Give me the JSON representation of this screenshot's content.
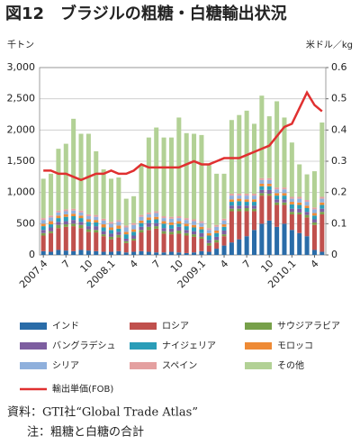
{
  "chart_data": {
    "type": "bar",
    "stacked": true,
    "title": "図12　ブラジルの粗糖・白糖輸出状況",
    "y_label": "千トン",
    "y2_label": "米ドル／kg",
    "categories": [
      "2007.4",
      null,
      null,
      "7",
      null,
      null,
      "10",
      null,
      null,
      "2008.1",
      null,
      null,
      "4",
      null,
      null,
      "7",
      null,
      null,
      "10",
      null,
      null,
      "2009.1",
      null,
      null,
      "4",
      null,
      null,
      "7",
      null,
      null,
      "10",
      null,
      null,
      "2010.1",
      null,
      null,
      "4",
      null
    ],
    "ylim": [
      0,
      3000
    ],
    "yticks": [
      0,
      500,
      {
        "value": 1000,
        "label": "1,000"
      },
      {
        "value": 1500,
        "label": "1,500"
      },
      {
        "value": 2000,
        "label": "2,000"
      },
      {
        "value": 2500,
        "label": "2,500"
      },
      {
        "value": 3000,
        "label": "3,000"
      }
    ],
    "y2lim": [
      0,
      0.6
    ],
    "y2ticks": [
      0,
      0.1,
      0.2,
      0.3,
      0.4,
      0.5,
      0.6
    ],
    "grid": true,
    "series": [
      {
        "name": "インド",
        "color": "#2a6ca8",
        "values": [
          60,
          50,
          80,
          70,
          60,
          80,
          70,
          60,
          50,
          50,
          60,
          40,
          50,
          60,
          50,
          40,
          40,
          50,
          40,
          30,
          40,
          60,
          50,
          100,
          150,
          200,
          250,
          300,
          400,
          500,
          550,
          450,
          500,
          400,
          350,
          300,
          80,
          50
        ]
      },
      {
        "name": "ロシア",
        "color": "#c0504d",
        "values": [
          250,
          300,
          350,
          380,
          400,
          350,
          300,
          300,
          250,
          200,
          220,
          150,
          180,
          300,
          350,
          380,
          300,
          280,
          300,
          280,
          250,
          200,
          100,
          100,
          150,
          500,
          450,
          400,
          300,
          450,
          400,
          350,
          300,
          250,
          300,
          300,
          400,
          600
        ]
      },
      {
        "name": "サウジアラビア",
        "color": "#77a04a",
        "values": [
          40,
          30,
          50,
          40,
          40,
          50,
          40,
          40,
          30,
          40,
          40,
          30,
          30,
          40,
          50,
          40,
          40,
          40,
          50,
          40,
          40,
          30,
          40,
          40,
          30,
          40,
          40,
          50,
          40,
          40,
          30,
          40,
          40,
          40,
          30,
          40,
          40,
          40
        ]
      },
      {
        "name": "バングラデシュ",
        "color": "#7d5ea0",
        "values": [
          50,
          60,
          50,
          50,
          60,
          50,
          50,
          60,
          50,
          50,
          50,
          40,
          50,
          50,
          60,
          50,
          50,
          50,
          60,
          50,
          50,
          60,
          50,
          50,
          60,
          50,
          50,
          40,
          50,
          50,
          60,
          50,
          50,
          50,
          60,
          50,
          50,
          50
        ]
      },
      {
        "name": "ナイジェリア",
        "color": "#2a9db8",
        "values": [
          60,
          50,
          60,
          70,
          60,
          60,
          70,
          60,
          60,
          60,
          50,
          70,
          60,
          60,
          50,
          60,
          70,
          60,
          50,
          60,
          60,
          60,
          70,
          60,
          60,
          60,
          70,
          60,
          60,
          60,
          60,
          60,
          60,
          70,
          60,
          60,
          60,
          60
        ]
      },
      {
        "name": "モロッコ",
        "color": "#ee8a35",
        "values": [
          40,
          50,
          40,
          40,
          40,
          40,
          40,
          40,
          50,
          40,
          50,
          40,
          40,
          40,
          40,
          40,
          40,
          40,
          40,
          40,
          40,
          40,
          40,
          40,
          40,
          40,
          40,
          40,
          40,
          40,
          40,
          40,
          40,
          40,
          40,
          40,
          40,
          40
        ]
      },
      {
        "name": "シリア",
        "color": "#8fb0dc",
        "values": [
          60,
          60,
          50,
          50,
          50,
          50,
          50,
          50,
          60,
          60,
          60,
          70,
          70,
          60,
          50,
          60,
          50,
          60,
          50,
          60,
          60,
          60,
          50,
          60,
          60,
          60,
          50,
          60,
          60,
          60,
          60,
          60,
          60,
          50,
          60,
          60,
          60,
          60
        ]
      },
      {
        "name": "スペイン",
        "color": "#e4a0a0",
        "values": [
          30,
          30,
          30,
          30,
          30,
          30,
          30,
          30,
          30,
          30,
          30,
          30,
          30,
          30,
          30,
          30,
          30,
          30,
          30,
          30,
          30,
          30,
          30,
          30,
          30,
          30,
          30,
          30,
          30,
          30,
          30,
          30,
          30,
          30,
          30,
          30,
          30,
          30
        ]
      },
      {
        "name": "その他",
        "color": "#b2d195",
        "values": [
          630,
          670,
          990,
          1050,
          1440,
          1230,
          1290,
          1020,
          790,
          690,
          680,
          430,
          430,
          800,
          1200,
          1340,
          1260,
          1270,
          1580,
          1360,
          1370,
          1380,
          1010,
          820,
          720,
          1180,
          1260,
          1330,
          1120,
          1320,
          990,
          1380,
          1120,
          870,
          520,
          410,
          580,
          1190
        ]
      },
      {
        "name": "輸出単価(FOB)",
        "color": "#e03030",
        "axis": "y2",
        "values": [
          0.27,
          0.27,
          0.26,
          0.26,
          0.25,
          0.24,
          0.25,
          0.26,
          0.26,
          0.27,
          0.26,
          0.26,
          0.27,
          0.29,
          0.28,
          0.28,
          0.28,
          0.28,
          0.28,
          0.29,
          0.3,
          0.29,
          0.29,
          0.3,
          0.31,
          0.31,
          0.31,
          0.32,
          0.33,
          0.34,
          0.35,
          0.38,
          0.41,
          0.42,
          0.47,
          0.52,
          0.48,
          0.46
        ]
      }
    ],
    "source": "資料：GTI社“Global Trade Atlas”",
    "note": "注：粗糖と白糖の合計"
  }
}
